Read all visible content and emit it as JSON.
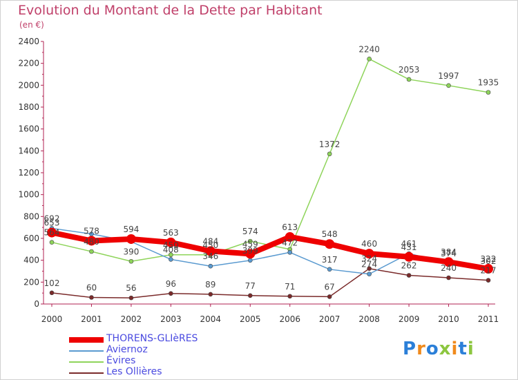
{
  "header": {
    "title": "Evolution du Montant de la Dette par Habitant",
    "subtitle": "(en €)"
  },
  "logo": {
    "letters": [
      "P",
      "r",
      "o",
      "x",
      "i",
      "t",
      "i"
    ],
    "colors": [
      "#2b7fd8",
      "#f08a1c",
      "#2b7fd8",
      "#8cc63f",
      "#f08a1c",
      "#2b7fd8",
      "#8cc63f"
    ]
  },
  "chart_data": {
    "type": "line",
    "title": "Evolution du Montant de la Dette par Habitant",
    "subtitle": "(en €)",
    "xlabel": "",
    "ylabel": "",
    "categories": [
      "2000",
      "2001",
      "2002",
      "2003",
      "2004",
      "2005",
      "2006",
      "2007",
      "2008",
      "2009",
      "2010",
      "2011"
    ],
    "ylim": [
      0,
      2400
    ],
    "yticks": [
      0,
      200,
      400,
      600,
      800,
      1000,
      1200,
      1400,
      1600,
      1800,
      2000,
      2200,
      2400
    ],
    "grid": false,
    "legend_position": "bottom-left",
    "series": [
      {
        "name": "Les Ollières",
        "color": "#7a2a2a",
        "values": [
          102,
          60,
          56,
          96,
          89,
          77,
          71,
          67,
          324,
          262,
          240,
          217
        ]
      },
      {
        "name": "Évires",
        "color": "#8ed45a",
        "values": [
          564,
          480,
          390,
          450,
          450,
          574,
          500,
          1372,
          2240,
          2053,
          1997,
          1935
        ]
      },
      {
        "name": "Aviernoz",
        "color": "#5a9ad0",
        "values": [
          692,
          640,
          570,
          408,
          346,
          399,
          472,
          317,
          274,
          461,
          374,
          302
        ]
      },
      {
        "name": "THORENS-GLIèRES",
        "color": "#ee0000",
        "values": [
          653,
          578,
          594,
          563,
          484,
          459,
          613,
          548,
          460,
          431,
          384,
          322
        ]
      }
    ],
    "point_labels": [
      {
        "series": "Les Ollières",
        "values": [
          "102",
          "60",
          "56",
          "96",
          "89",
          "77",
          "71",
          "67",
          "324",
          "262",
          "240",
          "217"
        ]
      },
      {
        "series": "Évires",
        "values": [
          "564",
          "480",
          "390",
          "450",
          "450",
          "574",
          "",
          "1372",
          "2240",
          "2053",
          "1997",
          "1935"
        ]
      },
      {
        "series": "Aviernoz",
        "values": [
          "692",
          "",
          "",
          "408",
          "346",
          "399",
          "472",
          "317",
          "274",
          "461",
          "374",
          "302"
        ]
      },
      {
        "series": "THORENS-GLIèRES",
        "values": [
          "653",
          "578",
          "594",
          "563",
          "484",
          "459",
          "613",
          "548",
          "460",
          "431",
          "384",
          "322"
        ]
      }
    ]
  },
  "legend": {
    "items": [
      {
        "label": "THORENS-GLIèRES",
        "color": "#ee0000",
        "thick": true
      },
      {
        "label": "Aviernoz",
        "color": "#5a9ad0",
        "thick": false
      },
      {
        "label": "Évires",
        "color": "#8ed45a",
        "thick": false
      },
      {
        "label": "Les Ollières",
        "color": "#7a2a2a",
        "thick": false
      }
    ]
  }
}
